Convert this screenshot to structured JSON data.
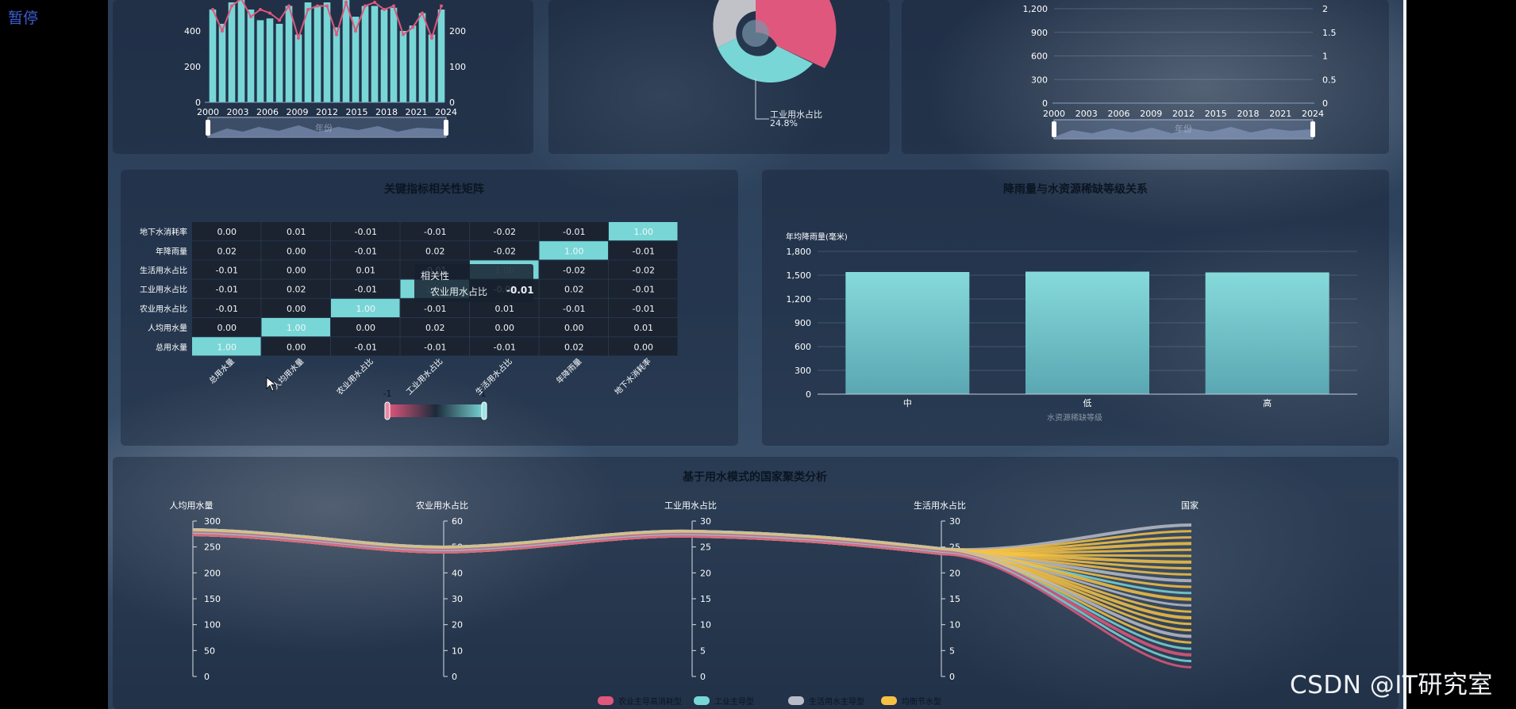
{
  "pause_label": "暂停",
  "watermark": "CSDN @IT研究室",
  "colors": {
    "teal": "#78d6d6",
    "pink": "#e0577d",
    "gray": "#b8bcc8",
    "yellow": "#f6c244"
  },
  "top_left": {
    "y_left_ticks": [
      "400",
      "200",
      "0"
    ],
    "y_right_ticks": [
      "200",
      "100",
      "0"
    ],
    "x_ticks": [
      "2000",
      "2003",
      "2006",
      "2009",
      "2012",
      "2015",
      "2018",
      "2021",
      "2024"
    ],
    "slider_label": "年份"
  },
  "top_mid": {
    "label": "工业用水占比",
    "value": "24.8%"
  },
  "top_right": {
    "y_left_ticks": [
      "1,200",
      "900",
      "600",
      "300",
      "0"
    ],
    "y_right_ticks": [
      "2",
      "1.5",
      "1",
      "0.5",
      "0"
    ],
    "x_ticks": [
      "2000",
      "2003",
      "2006",
      "2009",
      "2012",
      "2015",
      "2018",
      "2021",
      "2024"
    ],
    "slider_label": "年份"
  },
  "heatmap": {
    "title": "关键指标相关性矩阵",
    "rows": [
      "地下水消耗率",
      "年降雨量",
      "生活用水占比",
      "工业用水占比",
      "农业用水占比",
      "人均用水量",
      "总用水量"
    ],
    "cols": [
      "总用水量",
      "人均用水量",
      "农业用水占比",
      "工业用水占比",
      "生活用水占比",
      "年降雨量",
      "地下水消耗率"
    ],
    "values": [
      [
        "0.00",
        "0.01",
        "-0.01",
        "-0.01",
        "-0.02",
        "-0.01",
        "1.00"
      ],
      [
        "0.02",
        "0.00",
        "-0.01",
        "0.02",
        "-0.02",
        "1.00",
        "-0.01"
      ],
      [
        "-0.01",
        "0.00",
        "0.01",
        "-0.01",
        "1.00",
        "-0.02",
        "-0.02"
      ],
      [
        "-0.01",
        "0.02",
        "-0.01",
        "1.00",
        "-0.01",
        "0.02",
        "-0.01"
      ],
      [
        "-0.01",
        "0.00",
        "1.00",
        "-0.01",
        "0.01",
        "-0.01",
        "-0.01"
      ],
      [
        "0.00",
        "1.00",
        "0.00",
        "0.02",
        "0.00",
        "0.00",
        "0.01"
      ],
      [
        "1.00",
        "0.00",
        "-0.01",
        "-0.01",
        "-0.01",
        "0.02",
        "0.00"
      ]
    ],
    "visual_min": "-1",
    "visual_max": "1",
    "tooltip": {
      "title": "相关性",
      "row": "农业用水占比",
      "value": "-0.01"
    }
  },
  "rain_chart": {
    "title": "降雨量与水资源稀缺等级关系",
    "ylabel": "年均降雨量(毫米)",
    "xlabel": "水资源稀缺等级",
    "y_ticks": [
      "1,800",
      "1,500",
      "1,200",
      "900",
      "600",
      "300",
      "0"
    ],
    "categories": [
      "中",
      "低",
      "高"
    ]
  },
  "parallel": {
    "title": "基于用水模式的国家聚类分析",
    "axes": [
      {
        "name": "人均用水量",
        "ticks": [
          "300",
          "250",
          "200",
          "150",
          "100",
          "50",
          "0"
        ]
      },
      {
        "name": "农业用水占比",
        "ticks": [
          "60",
          "50",
          "40",
          "30",
          "20",
          "10",
          "0"
        ]
      },
      {
        "name": "工业用水占比",
        "ticks": [
          "30",
          "25",
          "20",
          "15",
          "10",
          "5",
          "0"
        ]
      },
      {
        "name": "生活用水占比",
        "ticks": [
          "30",
          "25",
          "20",
          "15",
          "10",
          "5",
          "0"
        ]
      },
      {
        "name": "国家",
        "ticks": []
      }
    ],
    "legend": [
      "农业主导高消耗型",
      "工业主导型",
      "生活用水主导型",
      "均衡节水型"
    ]
  },
  "chart_data": [
    {
      "type": "bar",
      "categories": [
        "2000",
        "2001",
        "2002",
        "2003",
        "2004",
        "2005",
        "2006",
        "2007",
        "2008",
        "2009",
        "2010",
        "2011",
        "2012",
        "2013",
        "2014",
        "2015",
        "2016",
        "2017",
        "2018",
        "2019",
        "2020",
        "2021",
        "2022",
        "2023",
        "2024"
      ],
      "values": [
        520,
        440,
        560,
        610,
        520,
        460,
        470,
        440,
        540,
        380,
        560,
        540,
        560,
        420,
        580,
        480,
        540,
        540,
        520,
        530,
        400,
        430,
        500,
        380,
        520
      ],
      "line_values": [
        260,
        200,
        270,
        290,
        240,
        260,
        250,
        230,
        270,
        180,
        260,
        270,
        270,
        190,
        280,
        200,
        270,
        280,
        260,
        270,
        190,
        210,
        250,
        180,
        270
      ]
    },
    {
      "type": "pie",
      "categories": [
        "工业用水占比"
      ],
      "values": [
        24.8
      ]
    },
    {
      "type": "heatmap",
      "x": [
        "总用水量",
        "人均用水量",
        "农业用水占比",
        "工业用水占比",
        "生活用水占比",
        "年降雨量",
        "地下水消耗率"
      ],
      "y": [
        "总用水量",
        "人均用水量",
        "农业用水占比",
        "工业用水占比",
        "生活用水占比",
        "年降雨量",
        "地下水消耗率"
      ],
      "range": [
        -1,
        1
      ]
    },
    {
      "type": "bar",
      "categories": [
        "中",
        "低",
        "高"
      ],
      "values": [
        1540,
        1545,
        1535
      ],
      "ylim": [
        0,
        1800
      ]
    },
    {
      "type": "line",
      "categories": [
        "人均用水量",
        "农业用水占比",
        "工业用水占比",
        "生活用水占比"
      ]
    }
  ]
}
